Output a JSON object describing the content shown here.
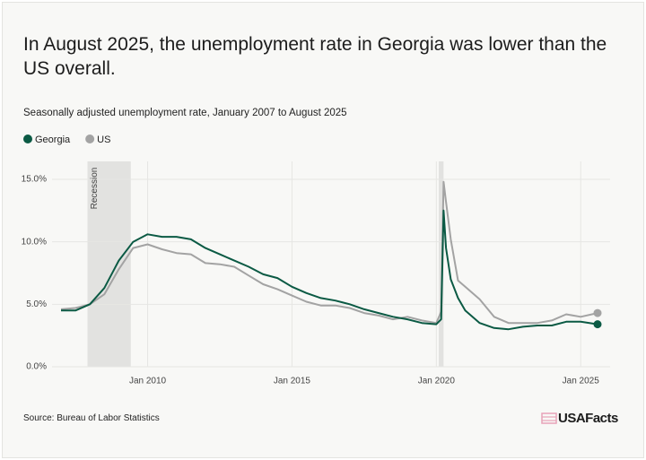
{
  "chart_data": {
    "type": "line",
    "title": "In August 2025, the unemployment rate in Georgia was lower than the US overall.",
    "subtitle": "Seasonally adjusted unemployment rate, January 2007 to August 2025",
    "source": "Source: Bureau of Labor Statistics",
    "brand": "USAFacts",
    "x": [
      "Jan 2007",
      "Jul 2007",
      "Jan 2008",
      "Jul 2008",
      "Jan 2009",
      "Jul 2009",
      "Jan 2010",
      "Jul 2010",
      "Jan 2011",
      "Jul 2011",
      "Jan 2012",
      "Jul 2012",
      "Jan 2013",
      "Jul 2013",
      "Jan 2014",
      "Jul 2014",
      "Jan 2015",
      "Jul 2015",
      "Jan 2016",
      "Jul 2016",
      "Jan 2017",
      "Jul 2017",
      "Jan 2018",
      "Jul 2018",
      "Jan 2019",
      "Jul 2019",
      "Jan 2020",
      "Mar 2020",
      "Apr 2020",
      "May 2020",
      "Jul 2020",
      "Oct 2020",
      "Jan 2021",
      "Jul 2021",
      "Jan 2022",
      "Jul 2022",
      "Jan 2023",
      "Jul 2023",
      "Jan 2024",
      "Jul 2024",
      "Jan 2025",
      "Aug 2025"
    ],
    "series": [
      {
        "name": "Georgia",
        "color": "#0b5a44",
        "values": [
          4.5,
          4.5,
          5.0,
          6.3,
          8.5,
          10.0,
          10.6,
          10.4,
          10.4,
          10.2,
          9.5,
          9.0,
          8.5,
          8.0,
          7.4,
          7.1,
          6.4,
          5.9,
          5.5,
          5.3,
          5.0,
          4.6,
          4.3,
          4.0,
          3.8,
          3.5,
          3.4,
          3.8,
          12.5,
          9.5,
          7.0,
          5.5,
          4.5,
          3.5,
          3.1,
          3.0,
          3.2,
          3.3,
          3.3,
          3.6,
          3.6,
          3.4
        ]
      },
      {
        "name": "US",
        "color": "#a3a3a3",
        "values": [
          4.6,
          4.7,
          5.0,
          5.8,
          7.8,
          9.5,
          9.8,
          9.4,
          9.1,
          9.0,
          8.3,
          8.2,
          8.0,
          7.3,
          6.6,
          6.2,
          5.7,
          5.2,
          4.9,
          4.9,
          4.7,
          4.3,
          4.1,
          3.8,
          4.0,
          3.7,
          3.5,
          4.4,
          14.8,
          13.2,
          10.2,
          6.9,
          6.4,
          5.4,
          4.0,
          3.5,
          3.5,
          3.5,
          3.7,
          4.2,
          4.0,
          4.3
        ]
      }
    ],
    "xlim": [
      "Jan 2007",
      "Aug 2025"
    ],
    "xticks": [
      "Jan 2010",
      "Jan 2015",
      "Jan 2020",
      "Jan 2025"
    ],
    "ylim": [
      0,
      15
    ],
    "yticks": [
      {
        "value": 0,
        "label": "0.0%"
      },
      {
        "value": 5,
        "label": "5.0%"
      },
      {
        "value": 10,
        "label": "10.0%"
      },
      {
        "value": 15,
        "label": "15.0%"
      }
    ],
    "recessions": [
      {
        "start": "Dec 2007",
        "end": "Jun 2009",
        "label": "Recession"
      },
      {
        "start": "Feb 2020",
        "end": "Apr 2020"
      }
    ],
    "grid": true
  }
}
